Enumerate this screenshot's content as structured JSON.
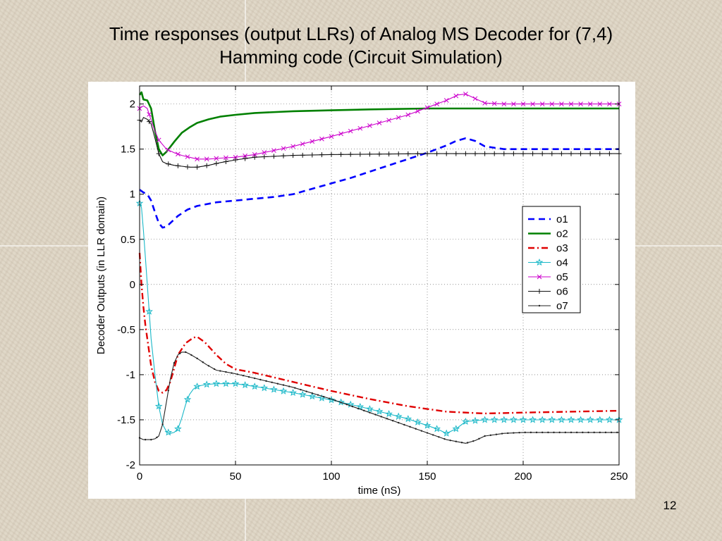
{
  "slide": {
    "title_line1": "Time responses (output LLRs) of Analog MS Decoder for (7,4)",
    "title_line2": "Hamming code (Circuit Simulation)",
    "page_number": "12"
  },
  "chart_data": {
    "type": "line",
    "title": "",
    "xlabel": "time (nS)",
    "ylabel": "Decoder Outputs (in LLR domain)",
    "xlim": [
      0,
      250
    ],
    "ylim": [
      -2,
      2.2
    ],
    "xticks": [
      0,
      50,
      100,
      150,
      200,
      250
    ],
    "yticks": [
      -2,
      -1.5,
      -1,
      -0.5,
      0,
      0.5,
      1,
      1.5,
      2
    ],
    "ytick_labels": [
      "-2",
      "-1.5",
      "-1",
      "-0.5",
      "0",
      "0.5",
      "1",
      "1.5",
      "2"
    ],
    "grid": true,
    "legend_position": "right",
    "series": [
      {
        "name": "o1",
        "color": "#0000ff",
        "style": "dashed",
        "marker": "none",
        "x": [
          0,
          2,
          4,
          6,
          8,
          10,
          12,
          14,
          16,
          20,
          25,
          30,
          40,
          50,
          60,
          70,
          80,
          90,
          100,
          110,
          120,
          130,
          140,
          150,
          160,
          165,
          170,
          175,
          180,
          190,
          200,
          250
        ],
        "y": [
          1.05,
          1.02,
          1.0,
          0.93,
          0.8,
          0.68,
          0.63,
          0.64,
          0.68,
          0.76,
          0.83,
          0.87,
          0.91,
          0.93,
          0.95,
          0.97,
          1.0,
          1.06,
          1.12,
          1.18,
          1.25,
          1.32,
          1.39,
          1.46,
          1.54,
          1.59,
          1.62,
          1.59,
          1.53,
          1.5,
          1.5,
          1.5
        ]
      },
      {
        "name": "o2",
        "color": "#008000",
        "style": "solid",
        "marker": "none",
        "x": [
          0,
          1,
          2,
          4,
          6,
          8,
          10,
          12,
          14,
          18,
          22,
          26,
          30,
          36,
          42,
          50,
          60,
          80,
          100,
          120,
          150,
          200,
          250
        ],
        "y": [
          2.1,
          2.13,
          2.05,
          2.04,
          1.95,
          1.7,
          1.5,
          1.43,
          1.47,
          1.58,
          1.68,
          1.74,
          1.79,
          1.83,
          1.86,
          1.88,
          1.9,
          1.92,
          1.93,
          1.94,
          1.95,
          1.95,
          1.95
        ]
      },
      {
        "name": "o3",
        "color": "#e00000",
        "style": "dashdot",
        "marker": "none",
        "x": [
          0,
          1,
          2,
          3,
          4,
          5,
          6,
          8,
          10,
          12,
          14,
          16,
          18,
          20,
          24,
          28,
          30,
          34,
          40,
          45,
          50,
          60,
          70,
          80,
          100,
          120,
          140,
          160,
          180,
          200,
          250
        ],
        "y": [
          0.35,
          0.0,
          -0.25,
          -0.45,
          -0.6,
          -0.75,
          -0.9,
          -1.08,
          -1.18,
          -1.2,
          -1.17,
          -1.08,
          -0.93,
          -0.78,
          -0.65,
          -0.59,
          -0.58,
          -0.64,
          -0.78,
          -0.88,
          -0.94,
          -0.98,
          -1.03,
          -1.08,
          -1.18,
          -1.27,
          -1.35,
          -1.41,
          -1.43,
          -1.42,
          -1.4
        ]
      },
      {
        "name": "o4",
        "color": "#1ab8c8",
        "style": "solid",
        "marker": "star",
        "x": [
          0,
          1,
          2,
          3,
          4,
          5,
          6,
          8,
          10,
          12,
          14,
          16,
          18,
          20,
          22,
          24,
          26,
          28,
          30,
          34,
          40,
          50,
          60,
          80,
          100,
          120,
          140,
          155,
          160,
          165,
          170,
          180,
          200,
          250
        ],
        "y": [
          0.9,
          0.85,
          0.6,
          0.3,
          0.0,
          -0.3,
          -0.6,
          -1.0,
          -1.35,
          -1.55,
          -1.63,
          -1.65,
          -1.64,
          -1.6,
          -1.48,
          -1.33,
          -1.22,
          -1.16,
          -1.13,
          -1.11,
          -1.1,
          -1.1,
          -1.13,
          -1.2,
          -1.28,
          -1.38,
          -1.49,
          -1.6,
          -1.65,
          -1.6,
          -1.52,
          -1.5,
          -1.5,
          -1.5
        ]
      },
      {
        "name": "o5",
        "color": "#cc00cc",
        "style": "solid",
        "marker": "x",
        "x": [
          0,
          2,
          4,
          6,
          8,
          10,
          14,
          18,
          22,
          26,
          30,
          36,
          42,
          50,
          60,
          80,
          100,
          120,
          140,
          150,
          160,
          166,
          170,
          175,
          180,
          190,
          200,
          250
        ],
        "y": [
          1.95,
          1.98,
          1.95,
          1.82,
          1.7,
          1.6,
          1.5,
          1.46,
          1.43,
          1.41,
          1.39,
          1.39,
          1.4,
          1.41,
          1.44,
          1.53,
          1.64,
          1.76,
          1.88,
          1.96,
          2.04,
          2.1,
          2.11,
          2.06,
          2.01,
          2.0,
          2.0,
          2.0
        ]
      },
      {
        "name": "o6",
        "color": "#111111",
        "style": "solid",
        "marker": "plus",
        "x": [
          0,
          1,
          2,
          4,
          6,
          8,
          10,
          12,
          14,
          18,
          22,
          26,
          30,
          36,
          42,
          50,
          60,
          80,
          100,
          150,
          200,
          250
        ],
        "y": [
          1.82,
          1.8,
          1.85,
          1.83,
          1.78,
          1.62,
          1.45,
          1.36,
          1.34,
          1.32,
          1.31,
          1.3,
          1.3,
          1.32,
          1.35,
          1.38,
          1.41,
          1.43,
          1.44,
          1.45,
          1.45,
          1.45
        ]
      },
      {
        "name": "o7",
        "color": "#222222",
        "style": "solid",
        "marker": "dot",
        "x": [
          0,
          2,
          4,
          6,
          8,
          10,
          12,
          14,
          16,
          18,
          20,
          22,
          24,
          26,
          30,
          35,
          40,
          50,
          60,
          80,
          100,
          120,
          140,
          160,
          170,
          175,
          180,
          190,
          200,
          250
        ],
        "y": [
          -1.7,
          -1.72,
          -1.72,
          -1.72,
          -1.71,
          -1.68,
          -1.55,
          -1.3,
          -1.05,
          -0.87,
          -0.78,
          -0.75,
          -0.75,
          -0.77,
          -0.82,
          -0.89,
          -0.95,
          -0.99,
          -1.04,
          -1.14,
          -1.27,
          -1.42,
          -1.57,
          -1.72,
          -1.76,
          -1.73,
          -1.68,
          -1.65,
          -1.64,
          -1.64
        ]
      }
    ]
  }
}
